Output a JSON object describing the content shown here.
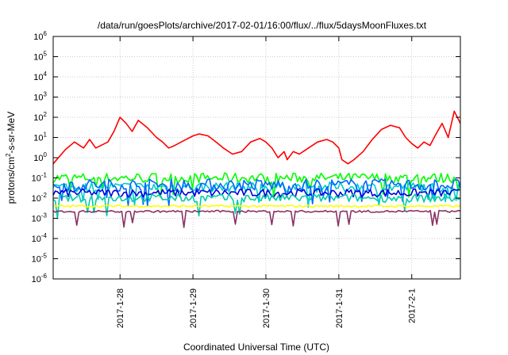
{
  "chart_data": {
    "type": "line",
    "title": "/data/run/goesPlots/archive/2017-02-01/16:00/flux/../flux/5daysMoonFluxes.txt",
    "xlabel": "Coordinated Universal Time (UTC)",
    "ylabel_parts": {
      "base": "protons/cm",
      "sup": "2",
      "rest": "-s-sr-MeV"
    },
    "yscale": "log",
    "ylim": [
      1e-06,
      1000000.0
    ],
    "y_ticks": [
      {
        "base": "10",
        "exp": "-6"
      },
      {
        "base": "10",
        "exp": "-5"
      },
      {
        "base": "10",
        "exp": "-4"
      },
      {
        "base": "10",
        "exp": "-3"
      },
      {
        "base": "10",
        "exp": "-2"
      },
      {
        "base": "10",
        "exp": "-1"
      },
      {
        "base": "10",
        "exp": "0"
      },
      {
        "base": "10",
        "exp": "1"
      },
      {
        "base": "10",
        "exp": "2"
      },
      {
        "base": "10",
        "exp": "3"
      },
      {
        "base": "10",
        "exp": "4"
      },
      {
        "base": "10",
        "exp": "5"
      },
      {
        "base": "10",
        "exp": "6"
      }
    ],
    "xlim": [
      "2017-01-27 02:00",
      "2017-02-01 16:00"
    ],
    "x_ticks": [
      "2017-1-28",
      "2017-1-29",
      "2017-1-30",
      "2017-1-31",
      "2017-2-1"
    ],
    "grid": true,
    "legend": "none",
    "series": [
      {
        "color": "#ff0000",
        "points": [
          [
            "2017-01-27 02:00",
            0.5
          ],
          [
            "2017-01-27 06:00",
            2.5
          ],
          [
            "2017-01-27 09:00",
            6
          ],
          [
            "2017-01-27 12:00",
            3
          ],
          [
            "2017-01-27 14:00",
            8
          ],
          [
            "2017-01-27 16:00",
            3
          ],
          [
            "2017-01-27 20:00",
            6
          ],
          [
            "2017-01-27 22:00",
            20
          ],
          [
            "2017-01-28 00:00",
            100
          ],
          [
            "2017-01-28 02:00",
            50
          ],
          [
            "2017-01-28 04:00",
            20
          ],
          [
            "2017-01-28 06:00",
            70
          ],
          [
            "2017-01-28 09:00",
            30
          ],
          [
            "2017-01-28 12:00",
            10
          ],
          [
            "2017-01-28 14:00",
            6
          ],
          [
            "2017-01-28 16:00",
            3
          ],
          [
            "2017-01-28 18:00",
            4
          ],
          [
            "2017-01-28 21:00",
            7
          ],
          [
            "2017-01-29 00:00",
            12
          ],
          [
            "2017-01-29 02:00",
            15
          ],
          [
            "2017-01-29 05:00",
            12
          ],
          [
            "2017-01-29 07:00",
            7
          ],
          [
            "2017-01-29 10:00",
            3
          ],
          [
            "2017-01-29 13:00",
            1.5
          ],
          [
            "2017-01-29 16:00",
            2
          ],
          [
            "2017-01-29 19:00",
            6
          ],
          [
            "2017-01-29 22:00",
            9
          ],
          [
            "2017-01-30 00:00",
            6
          ],
          [
            "2017-01-30 02:00",
            3
          ],
          [
            "2017-01-30 04:00",
            1
          ],
          [
            "2017-01-30 06:00",
            2
          ],
          [
            "2017-01-30 07:00",
            0.8
          ],
          [
            "2017-01-30 09:00",
            2
          ],
          [
            "2017-01-30 11:00",
            1.5
          ],
          [
            "2017-01-30 14:00",
            3
          ],
          [
            "2017-01-30 17:00",
            6
          ],
          [
            "2017-01-30 20:00",
            8
          ],
          [
            "2017-01-30 22:00",
            6
          ],
          [
            "2017-01-31 00:00",
            3
          ],
          [
            "2017-01-31 01:00",
            0.8
          ],
          [
            "2017-01-31 03:00",
            0.5
          ],
          [
            "2017-01-31 05:00",
            0.8
          ],
          [
            "2017-01-31 08:00",
            2
          ],
          [
            "2017-01-31 11:00",
            8
          ],
          [
            "2017-01-31 14:00",
            25
          ],
          [
            "2017-01-31 17:00",
            40
          ],
          [
            "2017-01-31 20:00",
            30
          ],
          [
            "2017-01-31 22:00",
            10
          ],
          [
            "2017-02-01 00:00",
            5
          ],
          [
            "2017-02-01 02:00",
            3
          ],
          [
            "2017-02-01 04:00",
            6
          ],
          [
            "2017-02-01 06:00",
            4
          ],
          [
            "2017-02-01 08:00",
            15
          ],
          [
            "2017-02-01 10:00",
            50
          ],
          [
            "2017-02-01 12:00",
            10
          ],
          [
            "2017-02-01 14:00",
            200
          ],
          [
            "2017-02-01 16:00",
            50
          ]
        ]
      },
      {
        "color": "#00ff00",
        "base": 0.1,
        "spread": 0.25,
        "dips": true
      },
      {
        "color": "#00cccc",
        "base": 0.035,
        "spread": 0.25,
        "dips": true
      },
      {
        "color": "#0066ff",
        "base": 0.045,
        "spread": 0.3,
        "dips": true
      },
      {
        "color": "#0000dd",
        "base": 0.018,
        "spread": 0.2,
        "dips": false
      },
      {
        "color": "#00ccaa",
        "base": 0.01,
        "spread": 0.2,
        "dips": true
      },
      {
        "color": "#ffff00",
        "base": 0.004,
        "spread": 0.05,
        "dips": false
      },
      {
        "color": "#883366",
        "base": 0.0022,
        "spread": 0.05,
        "dips": true
      }
    ]
  }
}
